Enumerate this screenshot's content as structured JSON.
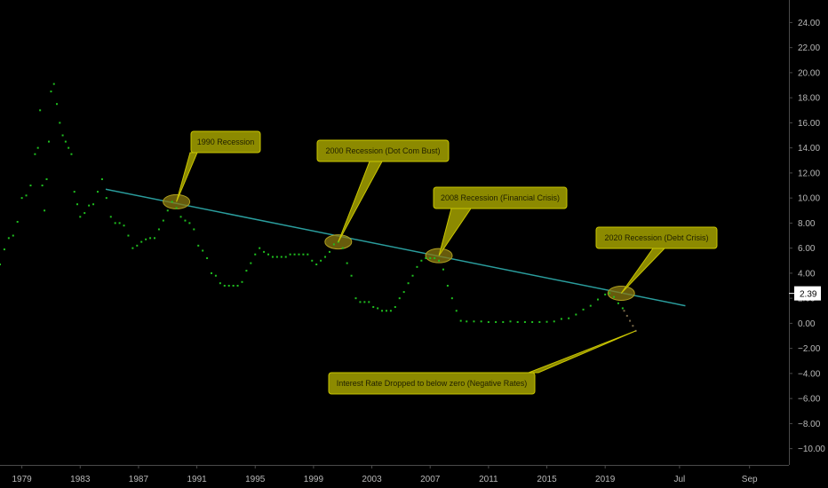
{
  "chart_data": {
    "type": "scatter",
    "title": "",
    "xlabel": "",
    "ylabel": "",
    "xlim": [
      1977.5,
      2031.6
    ],
    "ylim": [
      -11.3,
      25.8
    ],
    "x_ticks": [
      {
        "label": "1979",
        "x": 1979
      },
      {
        "label": "1983",
        "x": 1983
      },
      {
        "label": "1987",
        "x": 1987
      },
      {
        "label": "1991",
        "x": 1991
      },
      {
        "label": "1995",
        "x": 1995
      },
      {
        "label": "1999",
        "x": 1999
      },
      {
        "label": "2003",
        "x": 2003
      },
      {
        "label": "2007",
        "x": 2007
      },
      {
        "label": "2011",
        "x": 2011
      },
      {
        "label": "2015",
        "x": 2015
      },
      {
        "label": "2019",
        "x": 2019
      },
      {
        "label": "Jul",
        "x": 2024.1
      },
      {
        "label": "Sep",
        "x": 2028.9
      }
    ],
    "y_ticks": [
      "24.00",
      "22.00",
      "20.00",
      "18.00",
      "16.00",
      "14.00",
      "12.00",
      "10.00",
      "8.00",
      "6.00",
      "4.00",
      "2.00",
      "0.00",
      "−2.00",
      "−4.00",
      "−6.00",
      "−8.00",
      "−10.00"
    ],
    "y_tick_values": [
      24,
      22,
      20,
      18,
      16,
      14,
      12,
      10,
      8,
      6,
      4,
      2,
      0,
      -2,
      -4,
      -6,
      -8,
      -10
    ],
    "last_value_label": "2.39",
    "last_value": 2.39,
    "series": [
      {
        "color": "#1fbf1f",
        "points": [
          [
            1977.5,
            4.7
          ],
          [
            1977.8,
            5.9
          ],
          [
            1978.1,
            6.8
          ],
          [
            1978.4,
            7.0
          ],
          [
            1978.7,
            8.1
          ],
          [
            1979.0,
            10.0
          ],
          [
            1979.3,
            10.2
          ],
          [
            1979.6,
            11.0
          ],
          [
            1979.9,
            13.5
          ],
          [
            1980.1,
            14.0
          ],
          [
            1980.25,
            17.0
          ],
          [
            1980.4,
            11.0
          ],
          [
            1980.55,
            9.0
          ],
          [
            1980.7,
            11.5
          ],
          [
            1980.85,
            14.5
          ],
          [
            1981.0,
            18.5
          ],
          [
            1981.2,
            19.1
          ],
          [
            1981.4,
            17.5
          ],
          [
            1981.6,
            16.0
          ],
          [
            1981.8,
            15.0
          ],
          [
            1982.0,
            14.5
          ],
          [
            1982.2,
            14.0
          ],
          [
            1982.4,
            13.5
          ],
          [
            1982.6,
            10.5
          ],
          [
            1982.8,
            9.5
          ],
          [
            1983.0,
            8.5
          ],
          [
            1983.3,
            8.8
          ],
          [
            1983.6,
            9.4
          ],
          [
            1983.9,
            9.5
          ],
          [
            1984.2,
            10.5
          ],
          [
            1984.5,
            11.5
          ],
          [
            1984.8,
            10.0
          ],
          [
            1985.1,
            8.5
          ],
          [
            1985.4,
            8.0
          ],
          [
            1985.7,
            8.0
          ],
          [
            1986.0,
            7.8
          ],
          [
            1986.3,
            7.0
          ],
          [
            1986.6,
            6.0
          ],
          [
            1986.9,
            6.2
          ],
          [
            1987.2,
            6.5
          ],
          [
            1987.5,
            6.7
          ],
          [
            1987.8,
            6.8
          ],
          [
            1988.1,
            6.8
          ],
          [
            1988.4,
            7.5
          ],
          [
            1988.7,
            8.2
          ],
          [
            1989.0,
            9.0
          ],
          [
            1989.3,
            9.7
          ],
          [
            1989.6,
            9.2
          ],
          [
            1989.9,
            8.5
          ],
          [
            1990.2,
            8.2
          ],
          [
            1990.5,
            8.0
          ],
          [
            1990.8,
            7.5
          ],
          [
            1991.1,
            6.2
          ],
          [
            1991.4,
            5.8
          ],
          [
            1991.7,
            5.2
          ],
          [
            1992.0,
            4.0
          ],
          [
            1992.3,
            3.8
          ],
          [
            1992.6,
            3.2
          ],
          [
            1992.9,
            3.0
          ],
          [
            1993.2,
            3.0
          ],
          [
            1993.5,
            3.0
          ],
          [
            1993.8,
            3.0
          ],
          [
            1994.1,
            3.3
          ],
          [
            1994.4,
            4.2
          ],
          [
            1994.7,
            4.8
          ],
          [
            1995.0,
            5.5
          ],
          [
            1995.3,
            6.0
          ],
          [
            1995.6,
            5.7
          ],
          [
            1995.9,
            5.5
          ],
          [
            1996.2,
            5.3
          ],
          [
            1996.5,
            5.3
          ],
          [
            1996.8,
            5.3
          ],
          [
            1997.1,
            5.3
          ],
          [
            1997.4,
            5.5
          ],
          [
            1997.7,
            5.5
          ],
          [
            1998.0,
            5.5
          ],
          [
            1998.3,
            5.5
          ],
          [
            1998.6,
            5.5
          ],
          [
            1998.9,
            5.0
          ],
          [
            1999.2,
            4.7
          ],
          [
            1999.5,
            5.0
          ],
          [
            1999.8,
            5.3
          ],
          [
            2000.1,
            5.7
          ],
          [
            2000.4,
            6.3
          ],
          [
            2000.7,
            6.5
          ],
          [
            2001.0,
            6.0
          ],
          [
            2001.3,
            4.8
          ],
          [
            2001.6,
            3.8
          ],
          [
            2001.9,
            2.0
          ],
          [
            2002.2,
            1.7
          ],
          [
            2002.5,
            1.7
          ],
          [
            2002.8,
            1.7
          ],
          [
            2003.1,
            1.3
          ],
          [
            2003.4,
            1.2
          ],
          [
            2003.7,
            1.0
          ],
          [
            2004.0,
            1.0
          ],
          [
            2004.3,
            1.0
          ],
          [
            2004.6,
            1.3
          ],
          [
            2004.9,
            2.0
          ],
          [
            2005.2,
            2.5
          ],
          [
            2005.5,
            3.2
          ],
          [
            2005.8,
            3.8
          ],
          [
            2006.1,
            4.5
          ],
          [
            2006.4,
            5.0
          ],
          [
            2006.7,
            5.2
          ],
          [
            2007.0,
            5.2
          ],
          [
            2007.3,
            5.2
          ],
          [
            2007.6,
            5.0
          ],
          [
            2007.9,
            4.3
          ],
          [
            2008.2,
            3.0
          ],
          [
            2008.5,
            2.0
          ],
          [
            2008.8,
            1.0
          ],
          [
            2009.1,
            0.2
          ],
          [
            2009.5,
            0.15
          ],
          [
            2010.0,
            0.15
          ],
          [
            2010.5,
            0.15
          ],
          [
            2011.0,
            0.1
          ],
          [
            2011.5,
            0.1
          ],
          [
            2012.0,
            0.1
          ],
          [
            2012.5,
            0.15
          ],
          [
            2013.0,
            0.1
          ],
          [
            2013.5,
            0.1
          ],
          [
            2014.0,
            0.1
          ],
          [
            2014.5,
            0.1
          ],
          [
            2015.0,
            0.12
          ],
          [
            2015.5,
            0.15
          ],
          [
            2016.0,
            0.35
          ],
          [
            2016.5,
            0.4
          ],
          [
            2017.0,
            0.7
          ],
          [
            2017.5,
            1.1
          ],
          [
            2018.0,
            1.4
          ],
          [
            2018.5,
            1.9
          ],
          [
            2019.0,
            2.3
          ],
          [
            2019.3,
            2.4
          ],
          [
            2019.6,
            2.1
          ],
          [
            2019.9,
            1.6
          ],
          [
            2020.2,
            1.2
          ]
        ]
      },
      {
        "color": "#7a6a4a",
        "points": [
          [
            2020.3,
            1.0
          ],
          [
            2020.5,
            0.6
          ],
          [
            2020.7,
            0.2
          ],
          [
            2020.9,
            -0.2
          ],
          [
            2021.1,
            -0.6
          ]
        ]
      }
    ],
    "trendline": {
      "color": "#2a9d9d",
      "from": [
        1984.75,
        10.7
      ],
      "to": [
        2024.5,
        1.4
      ]
    },
    "annotations": [
      {
        "text": "1990 Recession",
        "target": [
          1989.6,
          9.7
        ]
      },
      {
        "text": "2000 Recession (Dot Com Bust)",
        "target": [
          2000.7,
          6.5
        ]
      },
      {
        "text": "2008 Recession (Financial Crisis)",
        "target": [
          2007.6,
          5.4
        ]
      },
      {
        "text": "2020 Recession (Debt Crisis)",
        "target": [
          2020.1,
          2.4
        ]
      },
      {
        "text": "Interest Rate Dropped to below zero (Negative Rates)",
        "target": [
          2021.1,
          -0.6
        ]
      }
    ]
  },
  "colors": {
    "background": "#000000",
    "note_fill": "#8c8a00",
    "note_border": "#c9c500",
    "circle_fill": "#8a7a10",
    "axis_line": "#4a4a4a",
    "tick_text": "#b8b8b8"
  }
}
